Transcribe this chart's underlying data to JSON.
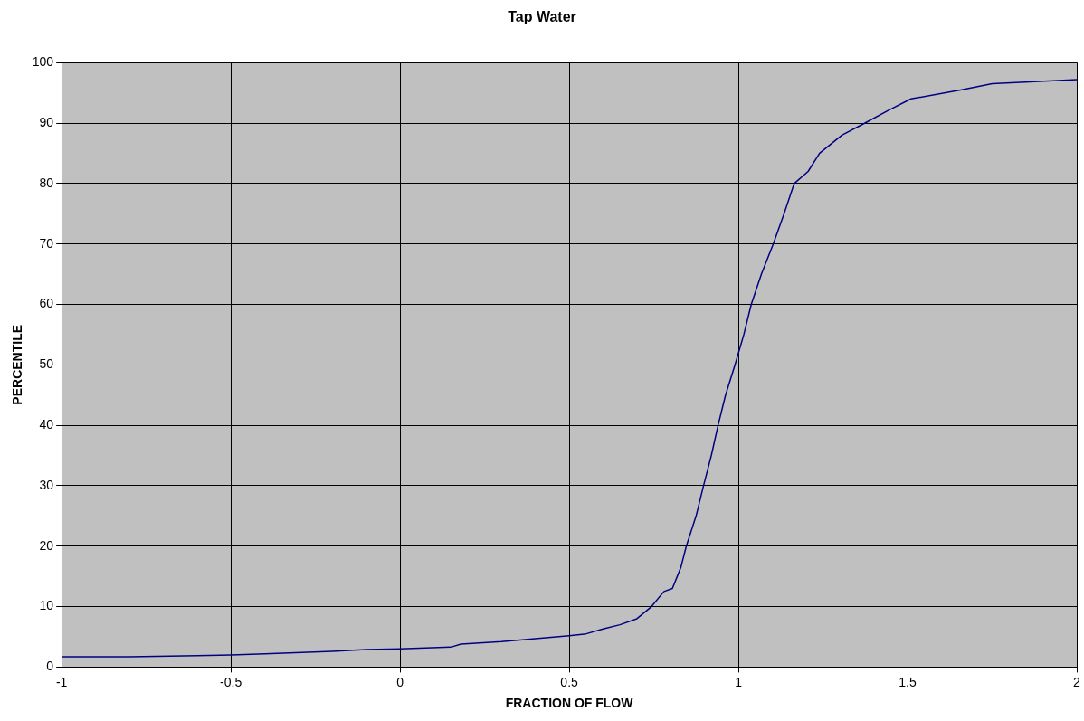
{
  "chart_data": {
    "type": "line",
    "title": "Tap Water",
    "xlabel": "FRACTION OF FLOW",
    "ylabel": "PERCENTILE",
    "x": [
      -1,
      -0.8,
      -0.6,
      -0.5,
      -0.4,
      -0.2,
      -0.1,
      0,
      0.15,
      0.18,
      0.3,
      0.4,
      0.5,
      0.55,
      0.6,
      0.65,
      0.7,
      0.743,
      0.78,
      0.805,
      0.83,
      0.846,
      0.875,
      0.897,
      0.92,
      0.94,
      0.962,
      0.99,
      1.016,
      1.038,
      1.068,
      1.103,
      1.135,
      1.165,
      1.206,
      1.24,
      1.306,
      1.374,
      1.44,
      1.51,
      1.66,
      1.75,
      2
    ],
    "series": [
      {
        "color": "#000080",
        "values": [
          1.7,
          1.7,
          1.9,
          2.0,
          2.2,
          2.6,
          2.9,
          3.0,
          3.3,
          3.8,
          4.2,
          4.7,
          5.2,
          5.5,
          6.3,
          7.0,
          8.0,
          10,
          12.5,
          13,
          16.5,
          20,
          25,
          30,
          35,
          40,
          45,
          50,
          55,
          60,
          65,
          70,
          75,
          80,
          82,
          85,
          88,
          90,
          92,
          94,
          95.5,
          96.5,
          97.2
        ]
      }
    ],
    "xlim": [
      -1,
      2
    ],
    "xticks": [
      -1,
      -0.5,
      0,
      0.5,
      1,
      1.5,
      2
    ],
    "ylim": [
      0,
      100
    ],
    "yticks": [
      0,
      10,
      20,
      30,
      40,
      50,
      60,
      70,
      80,
      90,
      100
    ],
    "grid": true,
    "legend": false,
    "marker": "none",
    "line_style": "solid"
  }
}
